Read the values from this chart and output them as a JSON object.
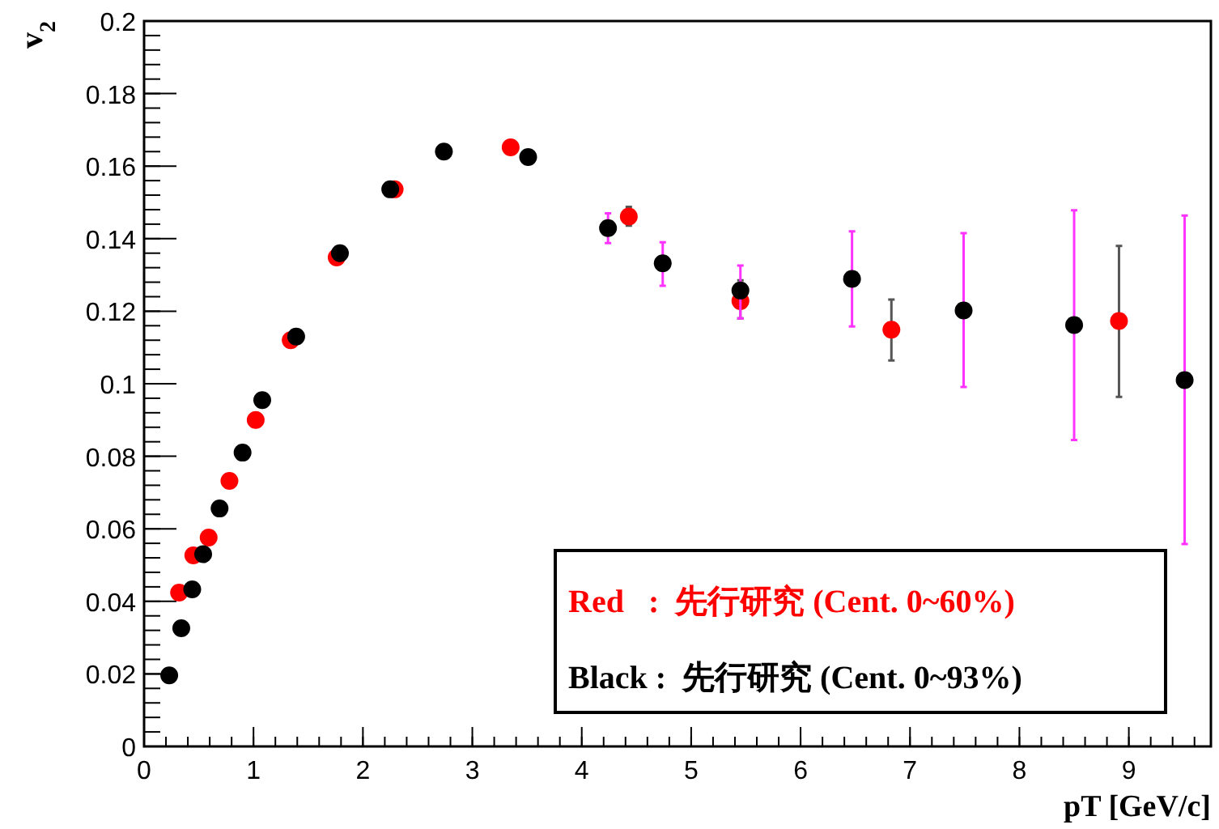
{
  "chart_data": {
    "type": "scatter",
    "xlabel": "pT [GeV/c]",
    "ylabel": "v$_{2}$",
    "marker": "circle",
    "legend": "bottom right",
    "grid": false,
    "xlim": [
      0,
      9.75
    ],
    "xticks": [
      0,
      1,
      2,
      3,
      4,
      5,
      6,
      7,
      8,
      9
    ],
    "ylim": [
      0,
      0.2
    ],
    "yticks": [
      0,
      0.02,
      0.04,
      0.06,
      0.08,
      0.1,
      0.12,
      0.14,
      0.16,
      0.18,
      0.2
    ],
    "series": [
      {
        "name": "Red   :  先行研究 (Cent. 0~60%)",
        "color": "#ff0000",
        "x": [
          0.32,
          0.45,
          0.59,
          0.78,
          1.02,
          1.34,
          1.76,
          2.29,
          3.35,
          4.43,
          5.45,
          6.83,
          8.91
        ],
        "values": [
          0.0424,
          0.0527,
          0.0576,
          0.0732,
          0.09,
          0.112,
          0.1348,
          0.1536,
          0.1652,
          0.1461,
          0.1228,
          0.1149,
          0.1173
        ],
        "errors": [
          null,
          null,
          null,
          null,
          null,
          null,
          null,
          null,
          null,
          [
            0.1436,
            0.1488
          ],
          [
            0.118,
            0.1285
          ],
          [
            0.1064,
            0.1232
          ],
          [
            0.0964,
            0.138
          ]
        ]
      },
      {
        "name": "Black :  先行研究 (Cent. 0~93%)",
        "color": "#000000",
        "x": [
          0.23,
          0.34,
          0.44,
          0.54,
          0.69,
          0.9,
          1.08,
          1.39,
          1.79,
          2.25,
          2.74,
          3.51,
          4.24,
          4.74,
          5.45,
          6.47,
          7.49,
          8.5,
          9.51
        ],
        "values": [
          0.0196,
          0.0326,
          0.0433,
          0.053,
          0.0656,
          0.081,
          0.0955,
          0.113,
          0.136,
          0.1536,
          0.164,
          0.1625,
          0.1429,
          0.1332,
          0.1257,
          0.1289,
          0.1202,
          0.1162,
          0.101
        ],
        "errors": [
          null,
          null,
          null,
          null,
          null,
          null,
          null,
          null,
          null,
          null,
          null,
          null,
          [
            0.1388,
            0.147
          ],
          [
            0.127,
            0.139
          ],
          [
            0.118,
            0.1326
          ],
          [
            0.1158,
            0.142
          ],
          [
            0.0991,
            0.1415
          ],
          [
            0.0845,
            0.1478
          ],
          [
            0.0558,
            0.1464
          ]
        ]
      }
    ]
  }
}
